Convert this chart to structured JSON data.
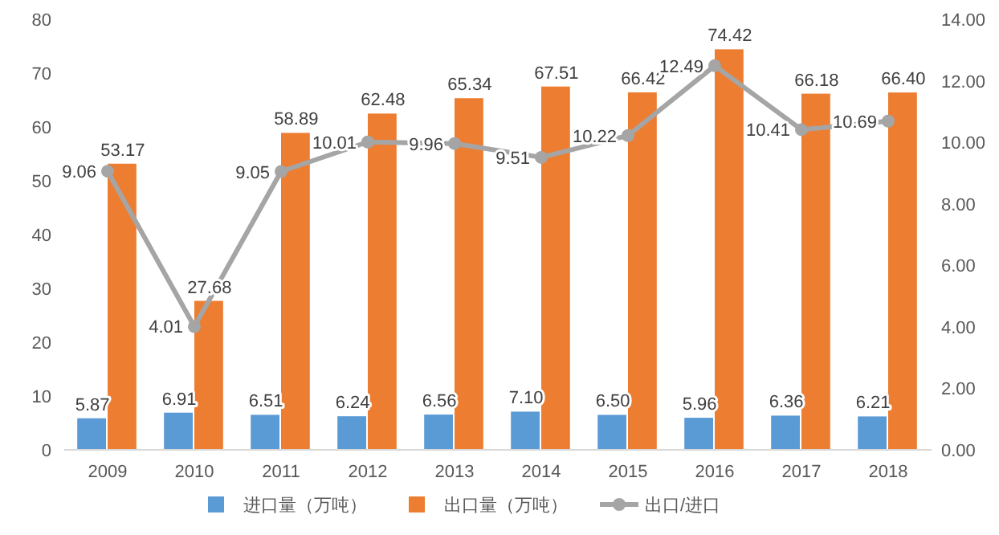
{
  "chart_data": {
    "type": "bar",
    "categories": [
      "2009",
      "2010",
      "2011",
      "2012",
      "2013",
      "2014",
      "2015",
      "2016",
      "2017",
      "2018"
    ],
    "series": [
      {
        "name": "进口量（万吨）",
        "color": "#5b9bd5",
        "values": [
          5.87,
          6.91,
          6.51,
          6.24,
          6.56,
          7.1,
          6.5,
          5.96,
          6.36,
          6.21
        ],
        "value_labels": [
          "5.87",
          "6.91",
          "6.51",
          "6.24",
          "6.56",
          "7.10",
          "6.50",
          "5.96",
          "6.36",
          "6.21"
        ]
      },
      {
        "name": "出口量（万吨）",
        "color": "#ed7d31",
        "values": [
          53.17,
          27.68,
          58.89,
          62.48,
          65.34,
          67.51,
          66.42,
          74.42,
          66.18,
          66.4
        ],
        "value_labels": [
          "53.17",
          "27.68",
          "58.89",
          "62.48",
          "65.34",
          "67.51",
          "66.42",
          "74.42",
          "66.18",
          "66.40"
        ]
      },
      {
        "name": "出口/进口",
        "type": "line",
        "axis": "y2",
        "color": "#a5a5a5",
        "values": [
          9.06,
          4.01,
          9.05,
          10.01,
          9.96,
          9.51,
          10.22,
          12.49,
          10.41,
          10.69
        ],
        "value_labels": [
          "9.06",
          "4.01",
          "9.05",
          "10.01",
          "9.96",
          "9.51",
          "10.22",
          "12.49",
          "10.41",
          "10.69"
        ]
      }
    ],
    "ylim": [
      0,
      80
    ],
    "yticks": [
      0,
      10,
      20,
      30,
      40,
      50,
      60,
      70,
      80
    ],
    "y2lim": [
      0,
      14
    ],
    "y2ticks": [
      {
        "value": 0,
        "label": "0.00"
      },
      {
        "value": 2,
        "label": "2.00"
      },
      {
        "value": 4,
        "label": "4.00"
      },
      {
        "value": 6,
        "label": "6.00"
      },
      {
        "value": 8,
        "label": "8.00"
      },
      {
        "value": 10,
        "label": "10.00"
      },
      {
        "value": 12,
        "label": "12.00"
      },
      {
        "value": 14,
        "label": "14.00"
      }
    ],
    "legend": "bottom",
    "marker": "circle",
    "grid": false
  }
}
